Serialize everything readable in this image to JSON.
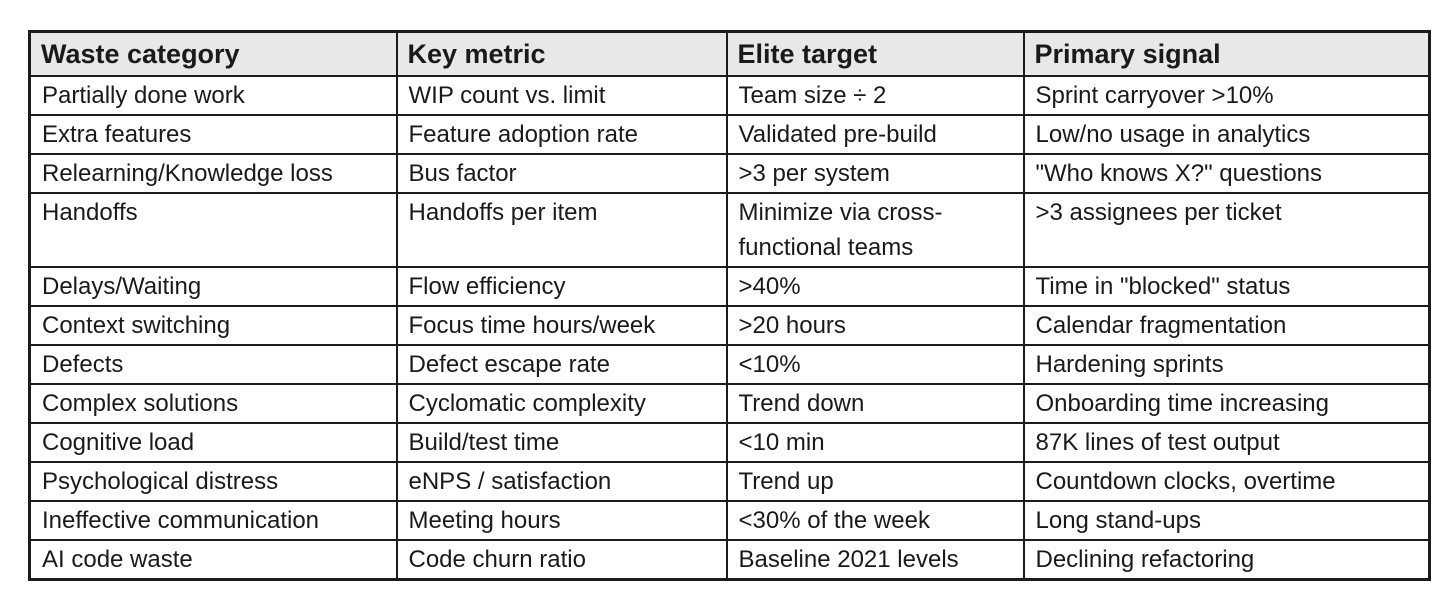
{
  "table": {
    "headers": [
      "Waste category",
      "Key metric",
      "Elite target",
      "Primary signal"
    ],
    "rows": [
      [
        "Partially done work",
        "WIP count vs. limit",
        "Team size ÷ 2",
        "Sprint carryover >10%"
      ],
      [
        "Extra features",
        "Feature adoption rate",
        "Validated pre-build",
        "Low/no usage in analytics"
      ],
      [
        "Relearning/Knowledge loss",
        "Bus factor",
        ">3 per system",
        "\"Who knows X?\" questions"
      ],
      [
        "Handoffs",
        "Handoffs per item",
        "Minimize via cross-functional teams",
        ">3 assignees per ticket"
      ],
      [
        "Delays/Waiting",
        "Flow efficiency",
        ">40%",
        "Time in \"blocked\" status"
      ],
      [
        "Context switching",
        "Focus time hours/week",
        ">20 hours",
        "Calendar fragmentation"
      ],
      [
        "Defects",
        "Defect escape rate",
        "<10%",
        "Hardening sprints"
      ],
      [
        "Complex solutions",
        "Cyclomatic complexity",
        "Trend down",
        "Onboarding time increasing"
      ],
      [
        "Cognitive load",
        "Build/test time",
        "<10 min",
        "87K lines of test output"
      ],
      [
        "Psychological distress",
        "eNPS / satisfaction",
        "Trend up",
        "Countdown clocks, overtime"
      ],
      [
        "Ineffective communication",
        "Meeting hours",
        "<30% of the week",
        "Long stand-ups"
      ],
      [
        "AI code waste",
        "Code churn ratio",
        "Baseline 2021 levels",
        "Declining refactoring"
      ]
    ]
  },
  "colors": {
    "header_background": "#e8e8e8",
    "border": "#1c1c1c",
    "text": "#1a1a1a",
    "page_bg": "#ffffff"
  }
}
